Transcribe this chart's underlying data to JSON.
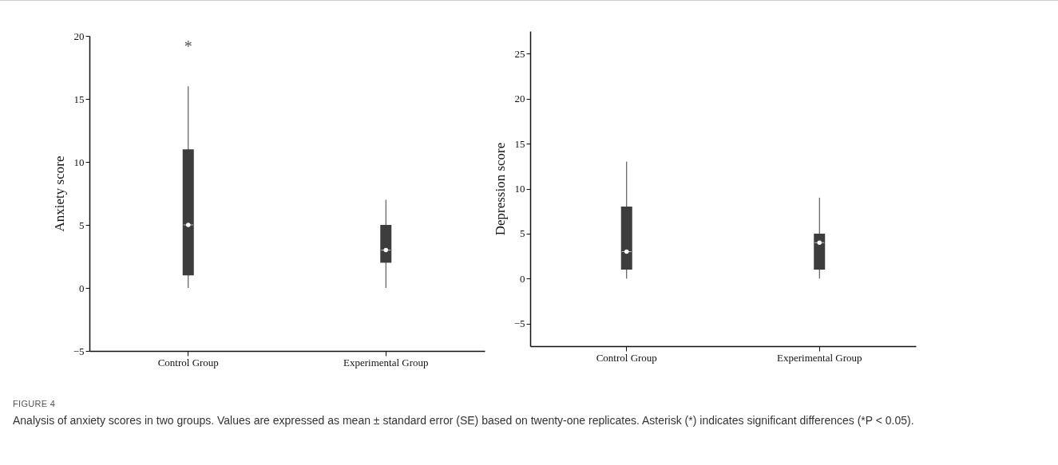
{
  "chart_data": [
    {
      "type": "box",
      "ylabel": "Anxiety score",
      "categories": [
        "Control Group",
        "Experimental Group"
      ],
      "color": "#3d3d3d",
      "boxes": [
        {
          "low": 0,
          "q1": 1,
          "median": 5,
          "q3": 11,
          "high": 16
        },
        {
          "low": 0,
          "q1": 2,
          "median": 3,
          "q3": 5,
          "high": 7
        }
      ],
      "ylim": [
        -5,
        20
      ],
      "yticks": [
        -5,
        0,
        5,
        10,
        15,
        20
      ],
      "annotations": [
        "*",
        "FIGURE 4",
        "Analysis of anxiety scores in two groups. Values are expressed as mean ± standard error (SE) based on twenty-one replicates. Asterisk (*) indicates significant differences (*P < 0.05)."
      ]
    },
    {
      "type": "box",
      "ylabel": "Depression score",
      "categories": [
        "Control Group",
        "Experimental Group"
      ],
      "color": "#3d3d3d",
      "boxes": [
        {
          "low": 0,
          "q1": 1,
          "median": 3,
          "q3": 8,
          "high": 13
        },
        {
          "low": 0,
          "q1": 1,
          "median": 4,
          "q3": 5,
          "high": 9
        }
      ],
      "ylim": [
        -7.5,
        27.5
      ],
      "yticks": [
        -5,
        0,
        5,
        10,
        15,
        20,
        25
      ]
    }
  ]
}
